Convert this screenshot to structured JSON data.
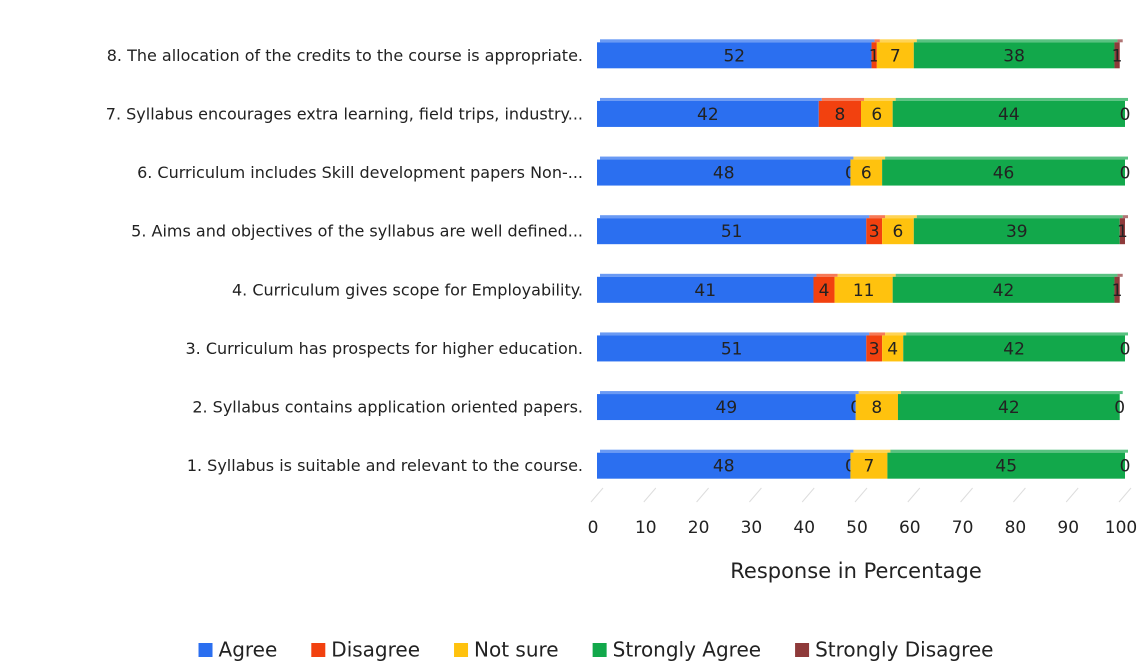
{
  "chart_data": {
    "type": "stacked-barh",
    "categories": [
      "8. The allocation of the credits to the course is appropriate.",
      "7.  Syllabus encourages extra learning, field trips, industry...",
      "6.  Curriculum includes Skill development papers Non-...",
      "5.   Aims and objectives of the syllabus are well defined...",
      "4.   Curriculum gives scope for Employability.",
      "3. Curriculum has prospects for higher education.",
      "2.   Syllabus contains application oriented papers.",
      "1.  Syllabus is suitable and relevant to the course."
    ],
    "series": [
      {
        "name": "Agree",
        "color": "#2b6ff0",
        "values": [
          52,
          42,
          48,
          51,
          41,
          51,
          49,
          48
        ]
      },
      {
        "name": "Disagree",
        "color": "#f2410f",
        "values": [
          1,
          8,
          0,
          3,
          4,
          3,
          0,
          0
        ]
      },
      {
        "name": "Not sure",
        "color": "#ffc20e",
        "values": [
          7,
          6,
          6,
          6,
          11,
          4,
          8,
          7
        ]
      },
      {
        "name": "Strongly Agree",
        "color": "#12a84b",
        "values": [
          38,
          44,
          46,
          39,
          42,
          42,
          42,
          45
        ]
      },
      {
        "name": "Strongly Disagree",
        "color": "#8e3a3a",
        "values": [
          1,
          0,
          0,
          1,
          1,
          0,
          0,
          0
        ]
      }
    ],
    "xlabel": "Response in Percentage",
    "xlim": [
      0,
      100
    ],
    "xticks": [
      0,
      10,
      20,
      30,
      40,
      50,
      60,
      70,
      80,
      90,
      100
    ],
    "legend": "bottom"
  }
}
